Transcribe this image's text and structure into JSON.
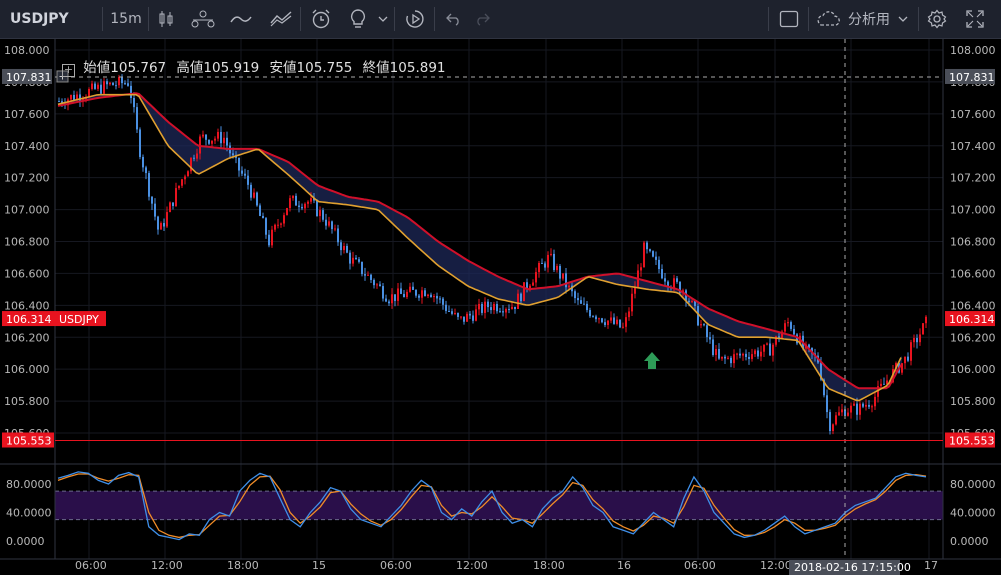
{
  "toolbar": {
    "symbol": "USDJPY",
    "interval": "15m",
    "layout_label": "分析用",
    "icons": [
      "candles-icon",
      "indicators-icon",
      "line-icon",
      "compare-icon",
      "alert-icon",
      "idea-icon",
      "chevron-down-icon",
      "replay-icon",
      "undo-icon",
      "redo-icon",
      "layout-icon",
      "cloud-icon",
      "chevron-down-icon",
      "settings-icon",
      "fullscreen-icon"
    ]
  },
  "legend": {
    "open_label": "始値",
    "open_value": "105.767",
    "high_label": "高値",
    "high_value": "105.919",
    "low_label": "安値",
    "low_value": "105.755",
    "close_label": "終値",
    "close_value": "105.891"
  },
  "colors": {
    "up": "#e8131f",
    "down": "#4a90e2",
    "ma_fast": "#e0a030",
    "ma_slow": "#d0102a",
    "cloud": "#1e2858",
    "stoch_k": "#3f8fe8",
    "stoch_d": "#f08c28",
    "band": "#2a0f4a"
  },
  "chart_data": {
    "type": "candlestick",
    "symbol": "USDJPY",
    "interval": "15m",
    "ylim": [
      105.55,
      108.0
    ],
    "y_ticks": [
      "108.000",
      "107.800",
      "107.600",
      "107.400",
      "107.200",
      "107.000",
      "106.800",
      "106.600",
      "106.400",
      "106.200",
      "106.000",
      "105.800",
      "105.600"
    ],
    "x_ticks": [
      "06:00",
      "12:00",
      "18:00",
      "15",
      "06:00",
      "12:00",
      "18:00",
      "16",
      "06:00",
      "12:00",
      "17"
    ],
    "crosshair_price": "107.831",
    "crosshair_time": "2018-02-16 17:15:00",
    "last_price": "106.314",
    "last_price_label": "USDJPY",
    "horizontal_line": "105.553",
    "price_path": {
      "x": [
        0,
        20,
        50,
        70,
        80,
        100,
        120,
        142,
        165,
        175,
        190,
        210,
        230,
        250,
        265,
        290,
        330,
        370,
        400,
        430,
        455,
        470,
        490,
        520,
        565,
        585,
        610,
        625,
        640,
        660,
        690,
        710,
        730,
        745,
        760,
        770,
        785,
        800,
        815,
        830,
        845,
        868
      ],
      "y": [
        107.68,
        107.72,
        107.78,
        107.8,
        107.4,
        106.85,
        107.15,
        107.45,
        107.45,
        107.3,
        107.15,
        106.8,
        107.05,
        107.05,
        106.95,
        106.7,
        106.45,
        106.5,
        106.3,
        106.4,
        106.4,
        106.55,
        106.7,
        106.4,
        106.25,
        106.75,
        106.55,
        106.5,
        106.3,
        106.05,
        106.1,
        106.12,
        106.3,
        106.12,
        106.05,
        105.65,
        105.75,
        105.75,
        105.82,
        105.95,
        106.05,
        106.3
      ]
    },
    "ma_fast": {
      "x": [
        0,
        40,
        80,
        110,
        140,
        170,
        200,
        230,
        260,
        290,
        320,
        350,
        380,
        410,
        440,
        470,
        500,
        530,
        560,
        590,
        620,
        650,
        680,
        710,
        740,
        770,
        800,
        830,
        845
      ],
      "y": [
        107.66,
        107.72,
        107.72,
        107.4,
        107.22,
        107.32,
        107.38,
        107.22,
        107.05,
        107.03,
        107.0,
        106.82,
        106.65,
        106.52,
        106.44,
        106.4,
        106.45,
        106.58,
        106.53,
        106.5,
        106.48,
        106.28,
        106.2,
        106.2,
        106.18,
        105.88,
        105.8,
        105.9,
        106.1
      ]
    },
    "ma_slow": {
      "x": [
        0,
        40,
        80,
        110,
        140,
        170,
        200,
        230,
        260,
        290,
        320,
        350,
        380,
        410,
        440,
        470,
        500,
        530,
        560,
        590,
        620,
        650,
        680,
        710,
        740,
        770,
        800,
        830,
        845
      ],
      "y": [
        107.65,
        107.7,
        107.73,
        107.55,
        107.4,
        107.38,
        107.38,
        107.3,
        107.15,
        107.08,
        107.05,
        106.95,
        106.8,
        106.68,
        106.58,
        106.5,
        106.52,
        106.58,
        106.6,
        106.55,
        106.5,
        106.38,
        106.3,
        106.25,
        106.2,
        106.0,
        105.88,
        105.88,
        106.05
      ]
    },
    "oscillator": {
      "y_ticks": [
        "80.0000",
        "40.0000",
        "0.0000"
      ],
      "ylim": [
        -5,
        105
      ],
      "band": [
        30,
        70
      ],
      "k": [
        88,
        92,
        97,
        95,
        85,
        80,
        92,
        96,
        90,
        20,
        8,
        5,
        2,
        10,
        8,
        30,
        40,
        35,
        70,
        85,
        95,
        90,
        60,
        30,
        20,
        40,
        55,
        75,
        70,
        45,
        30,
        25,
        20,
        35,
        50,
        70,
        85,
        75,
        40,
        30,
        45,
        35,
        55,
        70,
        40,
        25,
        30,
        20,
        45,
        60,
        70,
        90,
        75,
        50,
        40,
        20,
        15,
        10,
        25,
        40,
        30,
        20,
        60,
        90,
        70,
        40,
        25,
        10,
        5,
        8,
        15,
        25,
        35,
        20,
        10,
        15,
        20,
        25,
        40,
        50,
        55,
        60,
        75,
        90,
        95,
        92,
        90
      ],
      "d": [
        85,
        90,
        94,
        94,
        88,
        84,
        88,
        93,
        92,
        40,
        15,
        8,
        5,
        8,
        9,
        22,
        35,
        36,
        55,
        78,
        90,
        91,
        72,
        40,
        25,
        35,
        48,
        68,
        70,
        52,
        38,
        28,
        22,
        30,
        44,
        62,
        78,
        76,
        50,
        35,
        40,
        38,
        48,
        62,
        48,
        32,
        30,
        25,
        38,
        52,
        65,
        82,
        78,
        58,
        45,
        28,
        20,
        14,
        22,
        35,
        32,
        25,
        48,
        78,
        74,
        50,
        32,
        16,
        8,
        8,
        12,
        20,
        30,
        25,
        15,
        15,
        18,
        22,
        35,
        45,
        52,
        58,
        70,
        85,
        92,
        93,
        91
      ]
    }
  }
}
